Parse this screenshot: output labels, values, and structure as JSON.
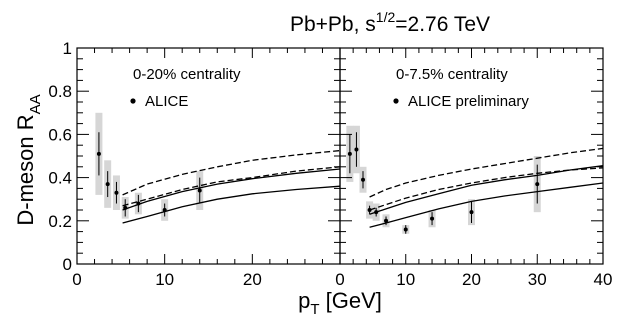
{
  "chart_data": {
    "type": "scatter",
    "title": "Pb+Pb, s^1/2=2.76  TeV",
    "title_parts": {
      "main": "Pb+Pb, s",
      "sup": "1/2",
      "tail": "=2.76  TeV"
    },
    "ylabel_parts": {
      "main": "D-meson R",
      "sub": "AA"
    },
    "xlabel_parts": {
      "main": "p",
      "sub": "T",
      "tail": "  [GeV]"
    },
    "ylim": [
      0,
      1
    ],
    "y_ticks": [
      "0",
      "0.2",
      "0.4",
      "0.6",
      "0.8",
      "1"
    ],
    "panels": [
      {
        "label": "0-20% centrality",
        "legend": "ALICE",
        "xlim": [
          0,
          30
        ],
        "x_ticks": [
          "0",
          "10",
          "20"
        ],
        "points": [
          {
            "x": 2.5,
            "y": 0.51,
            "stat": 0.1,
            "syst": 0.19
          },
          {
            "x": 3.5,
            "y": 0.37,
            "stat": 0.06,
            "syst": 0.11
          },
          {
            "x": 4.5,
            "y": 0.33,
            "stat": 0.05,
            "syst": 0.08
          },
          {
            "x": 5.5,
            "y": 0.26,
            "stat": 0.04,
            "syst": 0.05
          },
          {
            "x": 7.0,
            "y": 0.28,
            "stat": 0.04,
            "syst": 0.05
          },
          {
            "x": 10.0,
            "y": 0.25,
            "stat": 0.03,
            "syst": 0.05
          },
          {
            "x": 14.0,
            "y": 0.34,
            "stat": 0.06,
            "syst": 0.09
          }
        ],
        "curves": [
          {
            "style": "solid",
            "x": [
              5.2,
              8,
              12,
              16,
              20,
              25,
              30
            ],
            "y": [
              0.19,
              0.22,
              0.265,
              0.3,
              0.325,
              0.345,
              0.36
            ]
          },
          {
            "style": "solid",
            "x": [
              5.2,
              8,
              12,
              16,
              20,
              25,
              30
            ],
            "y": [
              0.25,
              0.29,
              0.335,
              0.37,
              0.395,
              0.42,
              0.44
            ]
          },
          {
            "style": "dashed",
            "x": [
              5.2,
              8,
              12,
              16,
              20,
              25,
              30
            ],
            "y": [
              0.27,
              0.3,
              0.345,
              0.38,
              0.4,
              0.43,
              0.45
            ]
          },
          {
            "style": "dashed",
            "x": [
              5.2,
              8,
              12,
              16,
              20,
              25,
              30
            ],
            "y": [
              0.32,
              0.37,
              0.415,
              0.45,
              0.48,
              0.505,
              0.525
            ]
          }
        ]
      },
      {
        "label": "0-7.5% centrality",
        "legend": "ALICE preliminary",
        "xlim": [
          0,
          40
        ],
        "x_ticks": [
          "0",
          "10",
          "20",
          "30",
          "40"
        ],
        "points": [
          {
            "x": 1.5,
            "y": 0.51,
            "stat": 0.09,
            "syst": 0.13
          },
          {
            "x": 2.5,
            "y": 0.53,
            "stat": 0.08,
            "syst": 0.11
          },
          {
            "x": 3.5,
            "y": 0.39,
            "stat": 0.04,
            "syst": 0.06
          },
          {
            "x": 4.5,
            "y": 0.25,
            "stat": 0.02,
            "syst": 0.04
          },
          {
            "x": 5.5,
            "y": 0.24,
            "stat": 0.02,
            "syst": 0.04
          },
          {
            "x": 7.0,
            "y": 0.2,
            "stat": 0.02,
            "syst": 0.03
          },
          {
            "x": 10.0,
            "y": 0.16,
            "stat": 0.02,
            "syst": 0.02
          },
          {
            "x": 14.0,
            "y": 0.21,
            "stat": 0.03,
            "syst": 0.04
          },
          {
            "x": 20.0,
            "y": 0.24,
            "stat": 0.05,
            "syst": 0.06
          },
          {
            "x": 30.0,
            "y": 0.37,
            "stat": 0.09,
            "syst": 0.13
          }
        ],
        "curves": [
          {
            "style": "solid",
            "x": [
              4.5,
              7,
              10,
              15,
              20,
              25,
              30,
              35,
              40
            ],
            "y": [
              0.17,
              0.19,
              0.215,
              0.255,
              0.29,
              0.315,
              0.335,
              0.355,
              0.375
            ]
          },
          {
            "style": "solid",
            "x": [
              4.5,
              7,
              10,
              15,
              20,
              25,
              30,
              35,
              40
            ],
            "y": [
              0.23,
              0.255,
              0.285,
              0.325,
              0.365,
              0.39,
              0.41,
              0.435,
              0.455
            ]
          },
          {
            "style": "dashed",
            "x": [
              4.5,
              7,
              10,
              15,
              20,
              25,
              30,
              35,
              40
            ],
            "y": [
              0.25,
              0.275,
              0.305,
              0.345,
              0.375,
              0.4,
              0.42,
              0.435,
              0.445
            ]
          },
          {
            "style": "dashed",
            "x": [
              4.5,
              7,
              10,
              15,
              20,
              25,
              30,
              35,
              40
            ],
            "y": [
              0.31,
              0.345,
              0.375,
              0.41,
              0.44,
              0.465,
              0.49,
              0.515,
              0.535
            ]
          }
        ]
      }
    ]
  }
}
